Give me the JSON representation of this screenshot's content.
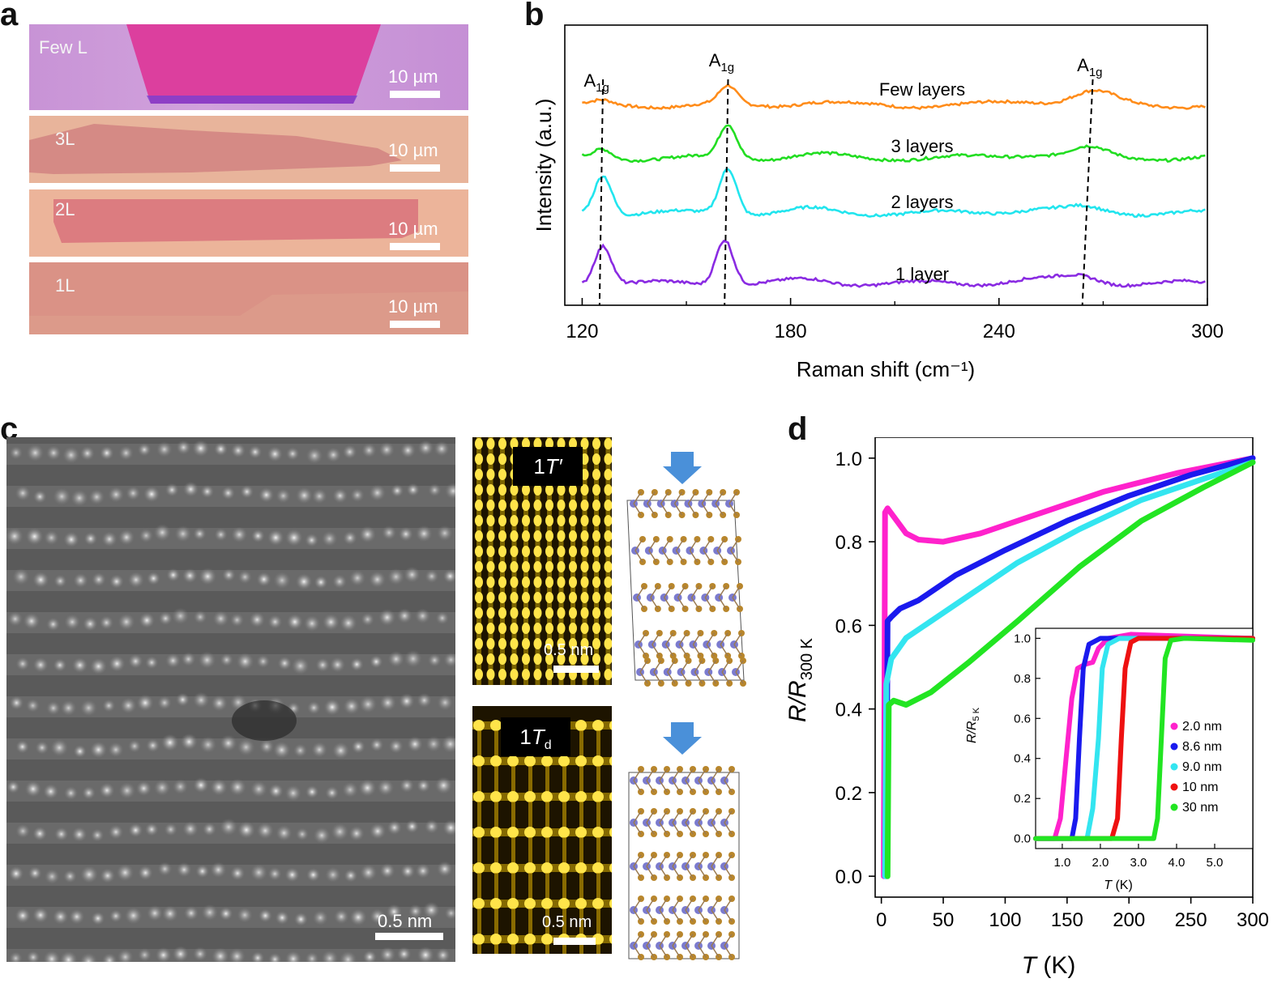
{
  "panels": {
    "a": "a",
    "b": "b",
    "c": "c",
    "d": "d"
  },
  "panel_a": {
    "images": [
      {
        "label": "Few L",
        "scale": "10 µm",
        "colors": {
          "bg": "#c996d8",
          "flake": "#dc3f9e"
        }
      },
      {
        "label": "3L",
        "scale": "10 µm",
        "colors": {
          "bg": "#e9b59c",
          "flake": "#d78c86"
        }
      },
      {
        "label": "2L",
        "scale": "10 µm",
        "colors": {
          "bg": "#ebb49a",
          "flake": "#dc7d80"
        }
      },
      {
        "label": "1L",
        "scale": "10 µm",
        "colors": {
          "bg": "#dc9b8a",
          "flake": "#d88c83"
        }
      }
    ]
  },
  "panel_c": {
    "stem_scale": "0.5 nm",
    "sim_1": {
      "label": "1",
      "label_italic": "T′",
      "scale": "0.5 nm"
    },
    "sim_2": {
      "label": "1",
      "label_italic": "T",
      "label_sub": "d",
      "scale": "0.5 nm"
    }
  },
  "chart_data": [
    {
      "id": "b",
      "type": "line",
      "title": "",
      "xlabel": "Raman shift (cm⁻¹)",
      "ylabel": "Intensity (a.u.)",
      "xlim": [
        115,
        300
      ],
      "xticks": [
        120,
        180,
        240,
        300
      ],
      "series": [
        {
          "name": "Few layers",
          "color": "#ff8c1a",
          "offset": 3.0,
          "peaks": [
            [
              126,
              0.15,
              2.5
            ],
            [
              162,
              0.8,
              2.5
            ],
            [
              267,
              0.6,
              6
            ]
          ]
        },
        {
          "name": "3 layers",
          "color": "#22dd22",
          "offset": 2.0,
          "peaks": [
            [
              126,
              0.4,
              2.5
            ],
            [
              162,
              1.5,
              2.5
            ],
            [
              266,
              0.4,
              5
            ]
          ]
        },
        {
          "name": "2 layers",
          "color": "#22e5ee",
          "offset": 1.0,
          "peaks": [
            [
              126,
              1.8,
              2.5
            ],
            [
              162,
              2.1,
              2.5
            ],
            [
              265,
              0.2,
              5
            ]
          ]
        },
        {
          "name": "1 layer",
          "color": "#8a2be2",
          "offset": 0.0,
          "peaks": [
            [
              126,
              1.8,
              2.5
            ],
            [
              161,
              2.1,
              2.5
            ],
            [
              264,
              0.3,
              5
            ]
          ]
        }
      ],
      "annotations": [
        {
          "text": "A",
          "sub": "1g",
          "x": 126
        },
        {
          "text": "A",
          "sub": "1g",
          "x": 162
        },
        {
          "text": "A",
          "sub": "1g",
          "x": 268
        }
      ],
      "dashed_lines": [
        [
          126,
          125
        ],
        [
          162,
          161
        ],
        [
          267,
          264
        ]
      ]
    },
    {
      "id": "d",
      "type": "line",
      "xlabel": "T (K)",
      "ylabel": "R/R300 K",
      "xlim": [
        -5,
        300
      ],
      "ylim": [
        -0.05,
        1.05
      ],
      "xticks": [
        0,
        50,
        100,
        150,
        200,
        250,
        300
      ],
      "yticks": [
        "0.0",
        "0.2",
        "0.4",
        "0.6",
        "0.8",
        "1.0"
      ],
      "series": [
        {
          "name": "2.0 nm",
          "color": "#ff22cc",
          "points": [
            [
              2,
              0.0
            ],
            [
              3,
              0.87
            ],
            [
              5,
              0.88
            ],
            [
              10,
              0.86
            ],
            [
              20,
              0.82
            ],
            [
              30,
              0.805
            ],
            [
              50,
              0.8
            ],
            [
              80,
              0.82
            ],
            [
              120,
              0.86
            ],
            [
              180,
              0.92
            ],
            [
              240,
              0.965
            ],
            [
              300,
              1.0
            ]
          ]
        },
        {
          "name": "8.6 nm",
          "color": "#1a1aee",
          "points": [
            [
              4,
              0.0
            ],
            [
              5,
              0.61
            ],
            [
              8,
              0.62
            ],
            [
              15,
              0.64
            ],
            [
              30,
              0.66
            ],
            [
              60,
              0.72
            ],
            [
              100,
              0.78
            ],
            [
              150,
              0.85
            ],
            [
              200,
              0.91
            ],
            [
              250,
              0.96
            ],
            [
              300,
              1.0
            ]
          ]
        },
        {
          "name": "9.0 nm",
          "color": "#33e5f0",
          "points": [
            [
              3,
              0.0
            ],
            [
              4,
              0.46
            ],
            [
              8,
              0.52
            ],
            [
              20,
              0.57
            ],
            [
              40,
              0.61
            ],
            [
              70,
              0.67
            ],
            [
              110,
              0.75
            ],
            [
              160,
              0.83
            ],
            [
              210,
              0.9
            ],
            [
              260,
              0.95
            ],
            [
              300,
              0.99
            ]
          ]
        },
        {
          "name": "30 nm",
          "color": "#22e522",
          "points": [
            [
              5,
              0.0
            ],
            [
              6,
              0.41
            ],
            [
              10,
              0.42
            ],
            [
              20,
              0.41
            ],
            [
              40,
              0.44
            ],
            [
              70,
              0.51
            ],
            [
              110,
              0.61
            ],
            [
              160,
              0.74
            ],
            [
              210,
              0.85
            ],
            [
              260,
              0.93
            ],
            [
              300,
              0.99
            ]
          ]
        }
      ]
    },
    {
      "id": "d-inset",
      "type": "line",
      "xlabel": "T (K)",
      "ylabel": "R/R5 K",
      "xlim": [
        0.3,
        6.0
      ],
      "ylim": [
        -0.05,
        1.05
      ],
      "xticks": [
        "1.0",
        "2.0",
        "3.0",
        "4.0",
        "5.0"
      ],
      "yticks": [
        "0.0",
        "0.2",
        "0.4",
        "0.6",
        "0.8",
        "1.0"
      ],
      "series": [
        {
          "name": "2.0 nm",
          "color": "#ff22cc",
          "points": [
            [
              0.3,
              0
            ],
            [
              0.8,
              0
            ],
            [
              0.95,
              0.1
            ],
            [
              1.1,
              0.4
            ],
            [
              1.25,
              0.7
            ],
            [
              1.4,
              0.85
            ],
            [
              1.6,
              0.87
            ],
            [
              1.8,
              0.88
            ],
            [
              1.95,
              0.95
            ],
            [
              2.2,
              1.0
            ],
            [
              2.8,
              1.02
            ],
            [
              6,
              1.0
            ]
          ]
        },
        {
          "name": "8.6 nm",
          "color": "#1a1aee",
          "points": [
            [
              0.3,
              0
            ],
            [
              1.25,
              0
            ],
            [
              1.35,
              0.1
            ],
            [
              1.45,
              0.5
            ],
            [
              1.55,
              0.85
            ],
            [
              1.7,
              0.97
            ],
            [
              2.0,
              1.0
            ],
            [
              6,
              1.0
            ]
          ]
        },
        {
          "name": "9.0 nm",
          "color": "#33e5f0",
          "points": [
            [
              0.3,
              0
            ],
            [
              1.65,
              0
            ],
            [
              1.8,
              0.15
            ],
            [
              1.95,
              0.5
            ],
            [
              2.05,
              0.85
            ],
            [
              2.2,
              0.97
            ],
            [
              2.5,
              1.0
            ],
            [
              6,
              1.0
            ]
          ]
        },
        {
          "name": "10 nm",
          "color": "#ee1111",
          "points": [
            [
              0.3,
              0
            ],
            [
              2.3,
              0
            ],
            [
              2.45,
              0.1
            ],
            [
              2.55,
              0.5
            ],
            [
              2.65,
              0.85
            ],
            [
              2.8,
              0.98
            ],
            [
              3.0,
              1.0
            ],
            [
              6,
              1.0
            ]
          ]
        },
        {
          "name": "30 nm",
          "color": "#22e522",
          "points": [
            [
              0.3,
              0
            ],
            [
              3.4,
              0
            ],
            [
              3.5,
              0.1
            ],
            [
              3.6,
              0.5
            ],
            [
              3.7,
              0.9
            ],
            [
              3.85,
              0.99
            ],
            [
              4.2,
              1.0
            ],
            [
              6,
              0.99
            ]
          ]
        }
      ]
    }
  ]
}
